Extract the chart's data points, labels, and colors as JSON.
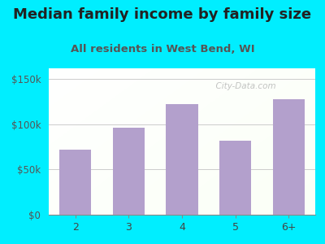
{
  "categories": [
    "2",
    "3",
    "4",
    "5",
    "6+"
  ],
  "values": [
    72000,
    96000,
    122000,
    82000,
    128000
  ],
  "bar_color": "#b3a0cc",
  "title": "Median family income by family size",
  "subtitle": "All residents in West Bend, WI",
  "title_fontsize": 13,
  "subtitle_fontsize": 9.5,
  "title_color": "#222222",
  "subtitle_color": "#555555",
  "yticks": [
    0,
    50000,
    100000,
    150000
  ],
  "ytick_labels": [
    "$0",
    "$50k",
    "$100k",
    "$150k"
  ],
  "ylim": [
    0,
    162000
  ],
  "bg_outer": "#00eeff",
  "watermark": "  City-Data.com",
  "grid_color": "#cccccc"
}
